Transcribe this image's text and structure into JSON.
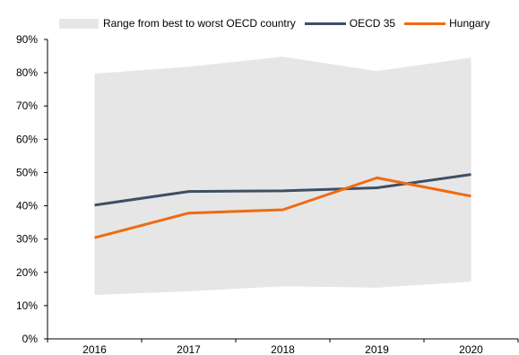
{
  "chart_data": {
    "type": "line",
    "title": "",
    "xlabel": "",
    "ylabel": "",
    "x": [
      "2016",
      "2017",
      "2018",
      "2019",
      "2020"
    ],
    "ylim": [
      0,
      90
    ],
    "yticks": [
      "0%",
      "10%",
      "20%",
      "30%",
      "40%",
      "50%",
      "60%",
      "70%",
      "80%",
      "90%"
    ],
    "grid": false,
    "legend_position": "top",
    "range_band": {
      "name": "Range from best to worst OECD country",
      "color": "#e6e6e6",
      "lower": [
        13.2,
        14.3,
        15.8,
        15.4,
        17.2
      ],
      "upper": [
        79.7,
        81.8,
        84.8,
        80.5,
        84.5
      ]
    },
    "series": [
      {
        "name": "OECD 35",
        "color": "#3d4f66",
        "values": [
          40.2,
          44.3,
          44.5,
          45.4,
          49.4
        ]
      },
      {
        "name": "Hungary",
        "color": "#f06a12",
        "values": [
          30.4,
          37.8,
          38.8,
          48.4,
          42.9
        ]
      }
    ]
  }
}
